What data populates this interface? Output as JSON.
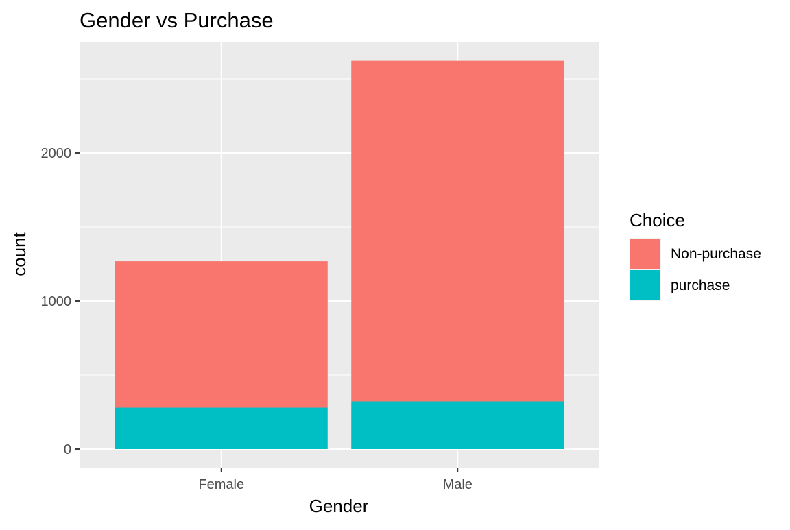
{
  "chart_data": {
    "type": "bar",
    "stacked": true,
    "title": "Gender vs Purchase",
    "xlabel": "Gender",
    "ylabel": "count",
    "categories": [
      "Female",
      "Male"
    ],
    "series": [
      {
        "name": "purchase",
        "values": [
          280,
          322
        ],
        "color": "#00BFC4"
      },
      {
        "name": "Non-purchase",
        "values": [
          988,
          2300
        ],
        "color": "#F8766D"
      }
    ],
    "ylim": [
      -125,
      2750
    ],
    "yticks": [
      0,
      1000,
      2000
    ],
    "ytick_labels": [
      "0",
      "1000",
      "2000"
    ],
    "grid": true,
    "panel_background": "#EBEBEB",
    "legend": {
      "title": "Choice",
      "position": "right",
      "entries": [
        {
          "label": "Non-purchase",
          "color": "#F8766D"
        },
        {
          "label": "purchase",
          "color": "#00BFC4"
        }
      ]
    }
  }
}
